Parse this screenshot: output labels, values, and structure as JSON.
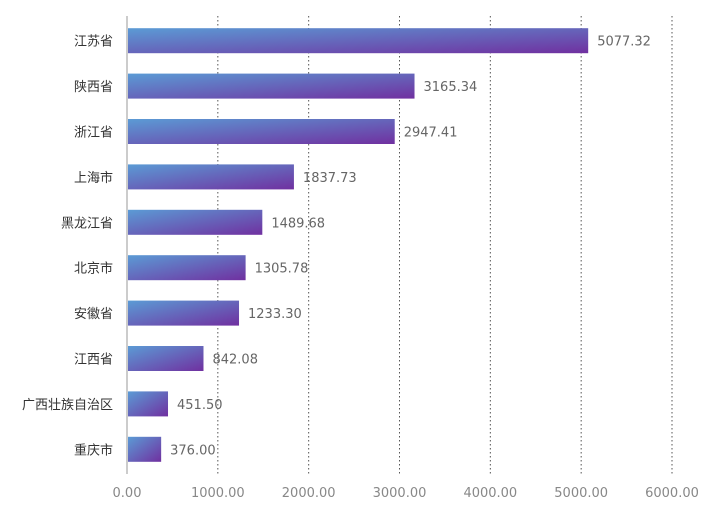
{
  "chart_data": {
    "type": "bar",
    "orientation": "horizontal",
    "categories": [
      "江苏省",
      "陕西省",
      "浙江省",
      "上海市",
      "黑龙江省",
      "北京市",
      "安徽省",
      "江西省",
      "广西壮族自治区",
      "重庆市"
    ],
    "values": [
      5077.32,
      3165.34,
      2947.41,
      1837.73,
      1489.68,
      1305.78,
      1233.3,
      842.08,
      451.5,
      376.0
    ],
    "value_labels": [
      "5077.32",
      "3165.34",
      "2947.41",
      "1837.73",
      "1489.68",
      "1305.78",
      "1233.30",
      "842.08",
      "451.50",
      "376.00"
    ],
    "x_ticks": [
      0,
      1000,
      2000,
      3000,
      4000,
      5000,
      6000
    ],
    "x_tick_labels": [
      "0.00",
      "1000.00",
      "2000.00",
      "3000.00",
      "4000.00",
      "5000.00",
      "6000.00"
    ],
    "xlim": [
      0,
      6000
    ],
    "grid": "vertical dotted",
    "legend": "none",
    "title": "",
    "xlabel": "",
    "ylabel": "",
    "colors": {
      "gradient_start": "#5b9bd5",
      "gradient_end": "#7030a0"
    }
  }
}
